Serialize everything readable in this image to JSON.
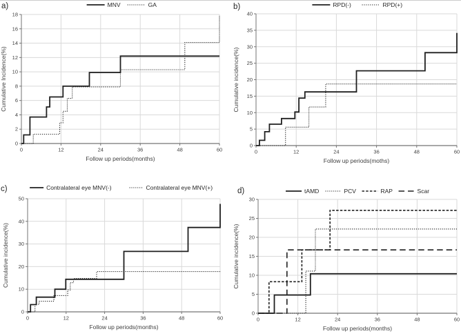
{
  "figure": {
    "background": "#ffffff",
    "series_color": "#1f1f1f",
    "gridline_color": "#d9d9d9",
    "axis_color": "#737373",
    "text_color": "#3f3f3f",
    "legend_text_color": "#262626"
  },
  "chart_data": [
    {
      "panel_label": "a)",
      "type": "line",
      "subtype": "step",
      "title": "",
      "xlabel": "Follow up periods(months)",
      "ylabel": "Cumulative Incidence(%)",
      "xlim": [
        0,
        60
      ],
      "ylim": [
        0,
        18
      ],
      "xticks": [
        0,
        12,
        24,
        36,
        48,
        60
      ],
      "yticks": [
        0,
        2,
        4,
        6,
        8,
        10,
        12,
        14,
        16,
        18
      ],
      "grid": true,
      "legend_position": "top",
      "series": [
        {
          "name": "MNV",
          "line_style": "solid",
          "step_points": [
            [
              0,
              0
            ],
            [
              0.7,
              1.2
            ],
            [
              2.6,
              3.7
            ],
            [
              7.6,
              5.1
            ],
            [
              8.6,
              6.5
            ],
            [
              12.6,
              8.0
            ],
            [
              20.6,
              9.9
            ],
            [
              30,
              12.2
            ],
            [
              60,
              12.2
            ]
          ]
        },
        {
          "name": "GA",
          "line_style": "dotted",
          "step_points": [
            [
              0,
              0
            ],
            [
              3.6,
              1.3
            ],
            [
              11.6,
              2.9
            ],
            [
              12.6,
              4.5
            ],
            [
              13.9,
              6.3
            ],
            [
              15.4,
              7.9
            ],
            [
              30,
              10.3
            ],
            [
              49.5,
              14.1
            ],
            [
              60,
              17.9
            ]
          ]
        }
      ]
    },
    {
      "panel_label": "b)",
      "type": "line",
      "subtype": "step",
      "title": "",
      "xlabel": "Follow up periods(moths)",
      "ylabel": "Cumulative incidence(%)",
      "xlim": [
        0,
        60
      ],
      "ylim": [
        0,
        40
      ],
      "xticks": [
        0,
        12,
        24,
        36,
        48,
        60
      ],
      "yticks": [
        0,
        5,
        10,
        15,
        20,
        25,
        30,
        35,
        40
      ],
      "grid": true,
      "legend_position": "top",
      "series": [
        {
          "name": "RPD(-)",
          "line_style": "solid",
          "step_points": [
            [
              0,
              0
            ],
            [
              1,
              1.6
            ],
            [
              2.6,
              4.2
            ],
            [
              4,
              6.5
            ],
            [
              7.6,
              8.2
            ],
            [
              11.6,
              10.2
            ],
            [
              12.8,
              14.4
            ],
            [
              14.6,
              16.3
            ],
            [
              30,
              22.7
            ],
            [
              50.5,
              28.2
            ],
            [
              60,
              34.2
            ]
          ]
        },
        {
          "name": "RPD(+)",
          "line_style": "dotted",
          "step_points": [
            [
              0,
              0
            ],
            [
              8.8,
              5.6
            ],
            [
              15.8,
              11.7
            ],
            [
              20.8,
              18.7
            ],
            [
              60,
              18.7
            ]
          ]
        }
      ]
    },
    {
      "panel_label": "c)",
      "type": "line",
      "subtype": "step",
      "title": "",
      "xlabel": "Follow up periods(months)",
      "ylabel": "Cumulative incidence(%)",
      "xlim": [
        0,
        60
      ],
      "ylim": [
        0,
        50
      ],
      "xticks": [
        0,
        12,
        24,
        36,
        48,
        60
      ],
      "yticks": [
        0,
        10,
        20,
        30,
        40,
        50
      ],
      "grid": true,
      "legend_position": "top",
      "series": [
        {
          "name": "Contralateral eye MNV(-)",
          "line_style": "solid",
          "step_points": [
            [
              0,
              0
            ],
            [
              0.9,
              3.2
            ],
            [
              2.7,
              6.5
            ],
            [
              8.5,
              10.0
            ],
            [
              11.9,
              14.4
            ],
            [
              30,
              26.7
            ],
            [
              50,
              37.3
            ],
            [
              60,
              47.7
            ]
          ]
        },
        {
          "name": "Contralateral eye MNV(+)",
          "line_style": "dotted",
          "step_points": [
            [
              0,
              0
            ],
            [
              2.3,
              3.3
            ],
            [
              3.6,
              4.7
            ],
            [
              8.2,
              7.2
            ],
            [
              12.5,
              9.7
            ],
            [
              13.3,
              12.9
            ],
            [
              14.3,
              14.8
            ],
            [
              21.5,
              17.8
            ],
            [
              60,
              17.8
            ]
          ]
        }
      ]
    },
    {
      "panel_label": "d)",
      "type": "line",
      "subtype": "step",
      "title": "",
      "xlabel": "Follow up periods(months)",
      "ylabel": "Cumulative incidence(%)",
      "xlim": [
        0,
        60
      ],
      "ylim": [
        0,
        30
      ],
      "xticks": [
        0,
        12,
        24,
        36,
        48,
        60
      ],
      "yticks": [
        0,
        5,
        10,
        15,
        20,
        25,
        30
      ],
      "grid": true,
      "legend_position": "top",
      "series": [
        {
          "name": "tAMD",
          "line_style": "solid",
          "step_points": [
            [
              0,
              0
            ],
            [
              4.9,
              4.8
            ],
            [
              15.8,
              10.4
            ],
            [
              60,
              10.4
            ]
          ]
        },
        {
          "name": "PCV",
          "line_style": "dotted",
          "step_points": [
            [
              0,
              0
            ],
            [
              14.4,
              11.1
            ],
            [
              17.3,
              22.2
            ],
            [
              60,
              22.2
            ]
          ]
        },
        {
          "name": "RAP",
          "line_style": "dashed",
          "step_points": [
            [
              0,
              0
            ],
            [
              3.3,
              8.3
            ],
            [
              13.2,
              16.7
            ],
            [
              21.7,
              27.1
            ],
            [
              60,
              27.1
            ]
          ]
        },
        {
          "name": "Scar",
          "line_style": "long-dash",
          "step_points": [
            [
              0,
              0
            ],
            [
              8.7,
              16.7
            ],
            [
              60,
              16.7
            ]
          ]
        }
      ]
    }
  ]
}
